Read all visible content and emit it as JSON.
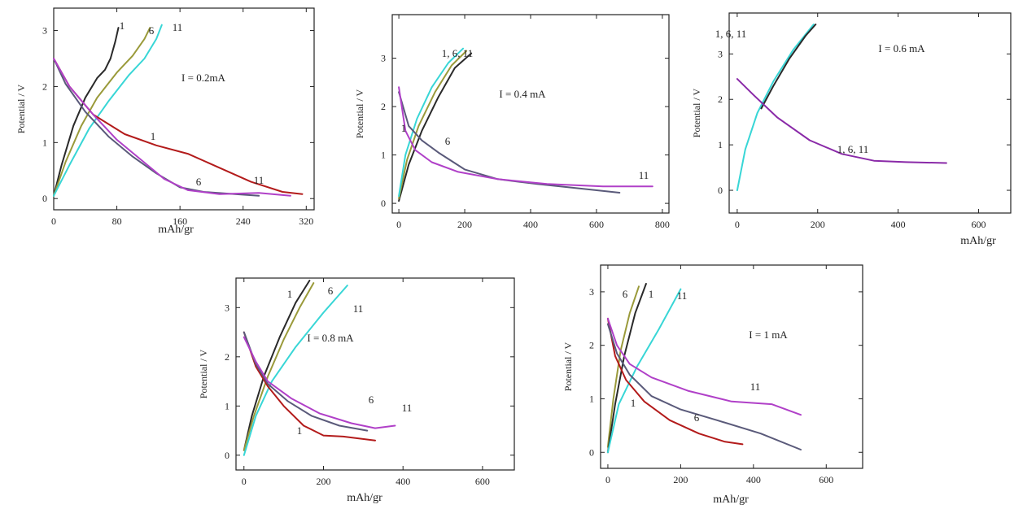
{
  "colors": {
    "cycle_1": "#2a2a2a",
    "cycle_6": "#9a9a3a",
    "cycle_11": "#38d6d6",
    "discharge_1": "#b31b1b",
    "discharge_6": "#5a5a7a",
    "discharge_11": "#b040c8",
    "discharge_all": "#8a2aa8"
  },
  "chart_data": [
    {
      "type": "line",
      "ylabel": "Potential / V",
      "xlabel": "mAh/gr",
      "xlim": [
        0,
        330
      ],
      "ylim": [
        -0.2,
        3.4
      ],
      "xticks": [
        "0",
        "80",
        "160",
        "240",
        "320"
      ],
      "yticks": [
        "0",
        "1",
        "2",
        "3"
      ],
      "annotation": "I = 0.2mA",
      "cycle_labels": [
        "1",
        "6",
        "11",
        "1",
        "6",
        "11"
      ],
      "series": [
        {
          "color_key": "cycle_1",
          "x": [
            0,
            10,
            25,
            40,
            55,
            65,
            72,
            78,
            82
          ],
          "y": [
            0.05,
            0.6,
            1.3,
            1.8,
            2.15,
            2.3,
            2.5,
            2.8,
            3.05
          ]
        },
        {
          "color_key": "cycle_6",
          "x": [
            0,
            15,
            35,
            55,
            80,
            100,
            115,
            122
          ],
          "y": [
            0.05,
            0.65,
            1.3,
            1.8,
            2.25,
            2.55,
            2.85,
            3.05
          ]
        },
        {
          "color_key": "cycle_11",
          "x": [
            0,
            20,
            45,
            70,
            95,
            115,
            130,
            137
          ],
          "y": [
            0.05,
            0.6,
            1.25,
            1.75,
            2.2,
            2.5,
            2.85,
            3.1
          ]
        },
        {
          "color_key": "discharge_1",
          "x": [
            0,
            20,
            50,
            90,
            130,
            170,
            210,
            250,
            290,
            315
          ],
          "y": [
            2.5,
            2.0,
            1.5,
            1.15,
            0.95,
            0.8,
            0.55,
            0.3,
            0.12,
            0.08
          ]
        },
        {
          "color_key": "discharge_6",
          "x": [
            0,
            15,
            40,
            70,
            100,
            130,
            160,
            190,
            230,
            260
          ],
          "y": [
            2.5,
            2.05,
            1.55,
            1.1,
            0.75,
            0.45,
            0.2,
            0.12,
            0.08,
            0.05
          ]
        },
        {
          "color_key": "discharge_11",
          "x": [
            0,
            20,
            50,
            80,
            110,
            140,
            170,
            210,
            260,
            300
          ],
          "y": [
            2.5,
            2.0,
            1.5,
            1.05,
            0.7,
            0.35,
            0.15,
            0.08,
            0.1,
            0.05
          ]
        }
      ]
    },
    {
      "type": "line",
      "ylabel": "Potential / V",
      "xlabel": "",
      "xlim": [
        -20,
        820
      ],
      "ylim": [
        -0.2,
        3.9
      ],
      "xticks": [
        "0",
        "200",
        "400",
        "600",
        "800"
      ],
      "yticks": [
        "0",
        "1",
        "2",
        "3"
      ],
      "annotation": "I = 0.4 mA",
      "cycle_labels": [
        "1, 6, 11",
        "1",
        "6",
        "11"
      ],
      "series": [
        {
          "color_key": "cycle_1",
          "x": [
            0,
            30,
            70,
            120,
            170,
            220
          ],
          "y": [
            0.05,
            0.8,
            1.5,
            2.2,
            2.8,
            3.1
          ]
        },
        {
          "color_key": "cycle_6",
          "x": [
            0,
            25,
            60,
            110,
            160,
            205
          ],
          "y": [
            0.1,
            0.9,
            1.6,
            2.3,
            2.85,
            3.15
          ]
        },
        {
          "color_key": "cycle_11",
          "x": [
            0,
            20,
            55,
            100,
            150,
            195
          ],
          "y": [
            0.15,
            1.0,
            1.75,
            2.4,
            2.9,
            3.2
          ]
        },
        {
          "color_key": "discharge_6",
          "x": [
            0,
            30,
            70,
            120,
            200,
            300,
            420,
            560,
            670
          ],
          "y": [
            2.3,
            1.6,
            1.3,
            1.05,
            0.7,
            0.5,
            0.4,
            0.3,
            0.22
          ]
        },
        {
          "color_key": "discharge_11",
          "x": [
            0,
            20,
            50,
            100,
            180,
            300,
            450,
            620,
            770
          ],
          "y": [
            2.4,
            1.5,
            1.1,
            0.85,
            0.65,
            0.5,
            0.4,
            0.35,
            0.35
          ]
        }
      ]
    },
    {
      "type": "line",
      "ylabel": "Potential / V",
      "xlabel": "mAh/gr",
      "xlim": [
        -20,
        680
      ],
      "ylim": [
        -0.5,
        3.9
      ],
      "xticks": [
        "0",
        "200",
        "400",
        "600"
      ],
      "yticks": [
        "0",
        "1",
        "2",
        "3"
      ],
      "annotation": "I = 0.6 mA",
      "cycle_labels": [
        "1, 6, 11",
        "1, 6, 11"
      ],
      "series": [
        {
          "color_key": "cycle_11",
          "x": [
            0,
            20,
            50,
            90,
            140,
            190
          ],
          "y": [
            0.0,
            0.9,
            1.7,
            2.4,
            3.1,
            3.65
          ]
        },
        {
          "color_key": "cycle_1",
          "x": [
            60,
            90,
            130,
            170,
            195
          ],
          "y": [
            1.8,
            2.3,
            2.9,
            3.4,
            3.65
          ]
        },
        {
          "color_key": "discharge_all",
          "x": [
            0,
            40,
            100,
            180,
            260,
            340,
            420,
            520
          ],
          "y": [
            2.45,
            2.1,
            1.6,
            1.1,
            0.8,
            0.65,
            0.62,
            0.6
          ]
        }
      ]
    },
    {
      "type": "line",
      "ylabel": "Potential / V",
      "xlabel": "mAh/gr",
      "xlim": [
        -20,
        680
      ],
      "ylim": [
        -0.3,
        3.6
      ],
      "xticks": [
        "0",
        "200",
        "400",
        "600"
      ],
      "yticks": [
        "0",
        "1",
        "2",
        "3"
      ],
      "annotation": "I = 0.8 mA",
      "cycle_labels": [
        "1",
        "6",
        "11",
        "6",
        "11",
        "1"
      ],
      "series": [
        {
          "color_key": "cycle_1",
          "x": [
            0,
            20,
            50,
            90,
            130,
            165
          ],
          "y": [
            0.1,
            0.8,
            1.6,
            2.4,
            3.1,
            3.55
          ]
        },
        {
          "color_key": "cycle_6",
          "x": [
            0,
            25,
            60,
            100,
            140,
            175
          ],
          "y": [
            0.1,
            0.8,
            1.6,
            2.35,
            3.0,
            3.5
          ]
        },
        {
          "color_key": "cycle_11",
          "x": [
            0,
            30,
            70,
            130,
            200,
            260
          ],
          "y": [
            0.0,
            0.8,
            1.5,
            2.2,
            2.9,
            3.45
          ]
        },
        {
          "color_key": "discharge_1",
          "x": [
            0,
            30,
            60,
            100,
            150,
            200,
            250,
            330
          ],
          "y": [
            2.5,
            1.8,
            1.4,
            1.0,
            0.6,
            0.4,
            0.38,
            0.3
          ]
        },
        {
          "color_key": "discharge_6",
          "x": [
            0,
            30,
            60,
            110,
            170,
            240,
            310
          ],
          "y": [
            2.5,
            1.85,
            1.45,
            1.1,
            0.8,
            0.6,
            0.5
          ]
        },
        {
          "color_key": "discharge_11",
          "x": [
            0,
            30,
            60,
            120,
            190,
            270,
            330,
            380
          ],
          "y": [
            2.4,
            1.9,
            1.5,
            1.15,
            0.85,
            0.65,
            0.55,
            0.6
          ]
        }
      ]
    },
    {
      "type": "line",
      "ylabel": "Potential / V",
      "xlabel": "mAh/gr",
      "xlim": [
        -20,
        700
      ],
      "ylim": [
        -0.3,
        3.5
      ],
      "xticks": [
        "0",
        "200",
        "400",
        "600"
      ],
      "yticks": [
        "0",
        "1",
        "2",
        "3"
      ],
      "annotation": "I = 1 mA",
      "cycle_labels": [
        "6",
        "1",
        "11",
        "11",
        "1",
        "6"
      ],
      "series": [
        {
          "color_key": "cycle_6",
          "x": [
            0,
            15,
            35,
            60,
            85
          ],
          "y": [
            0.1,
            1.0,
            1.9,
            2.6,
            3.1
          ]
        },
        {
          "color_key": "cycle_1",
          "x": [
            0,
            20,
            45,
            75,
            105
          ],
          "y": [
            0.0,
            0.9,
            1.8,
            2.6,
            3.15
          ]
        },
        {
          "color_key": "cycle_11",
          "x": [
            0,
            30,
            80,
            140,
            200
          ],
          "y": [
            0.0,
            0.9,
            1.6,
            2.3,
            3.05
          ]
        },
        {
          "color_key": "discharge_1",
          "x": [
            0,
            20,
            50,
            100,
            170,
            250,
            320,
            370
          ],
          "y": [
            2.5,
            1.8,
            1.35,
            0.95,
            0.6,
            0.35,
            0.2,
            0.15
          ]
        },
        {
          "color_key": "discharge_6",
          "x": [
            0,
            25,
            60,
            120,
            200,
            300,
            420,
            530
          ],
          "y": [
            2.4,
            1.85,
            1.45,
            1.05,
            0.8,
            0.6,
            0.35,
            0.05
          ]
        },
        {
          "color_key": "discharge_11",
          "x": [
            0,
            25,
            60,
            120,
            220,
            340,
            450,
            530
          ],
          "y": [
            2.5,
            2.0,
            1.65,
            1.4,
            1.15,
            0.95,
            0.9,
            0.7
          ]
        }
      ]
    }
  ]
}
